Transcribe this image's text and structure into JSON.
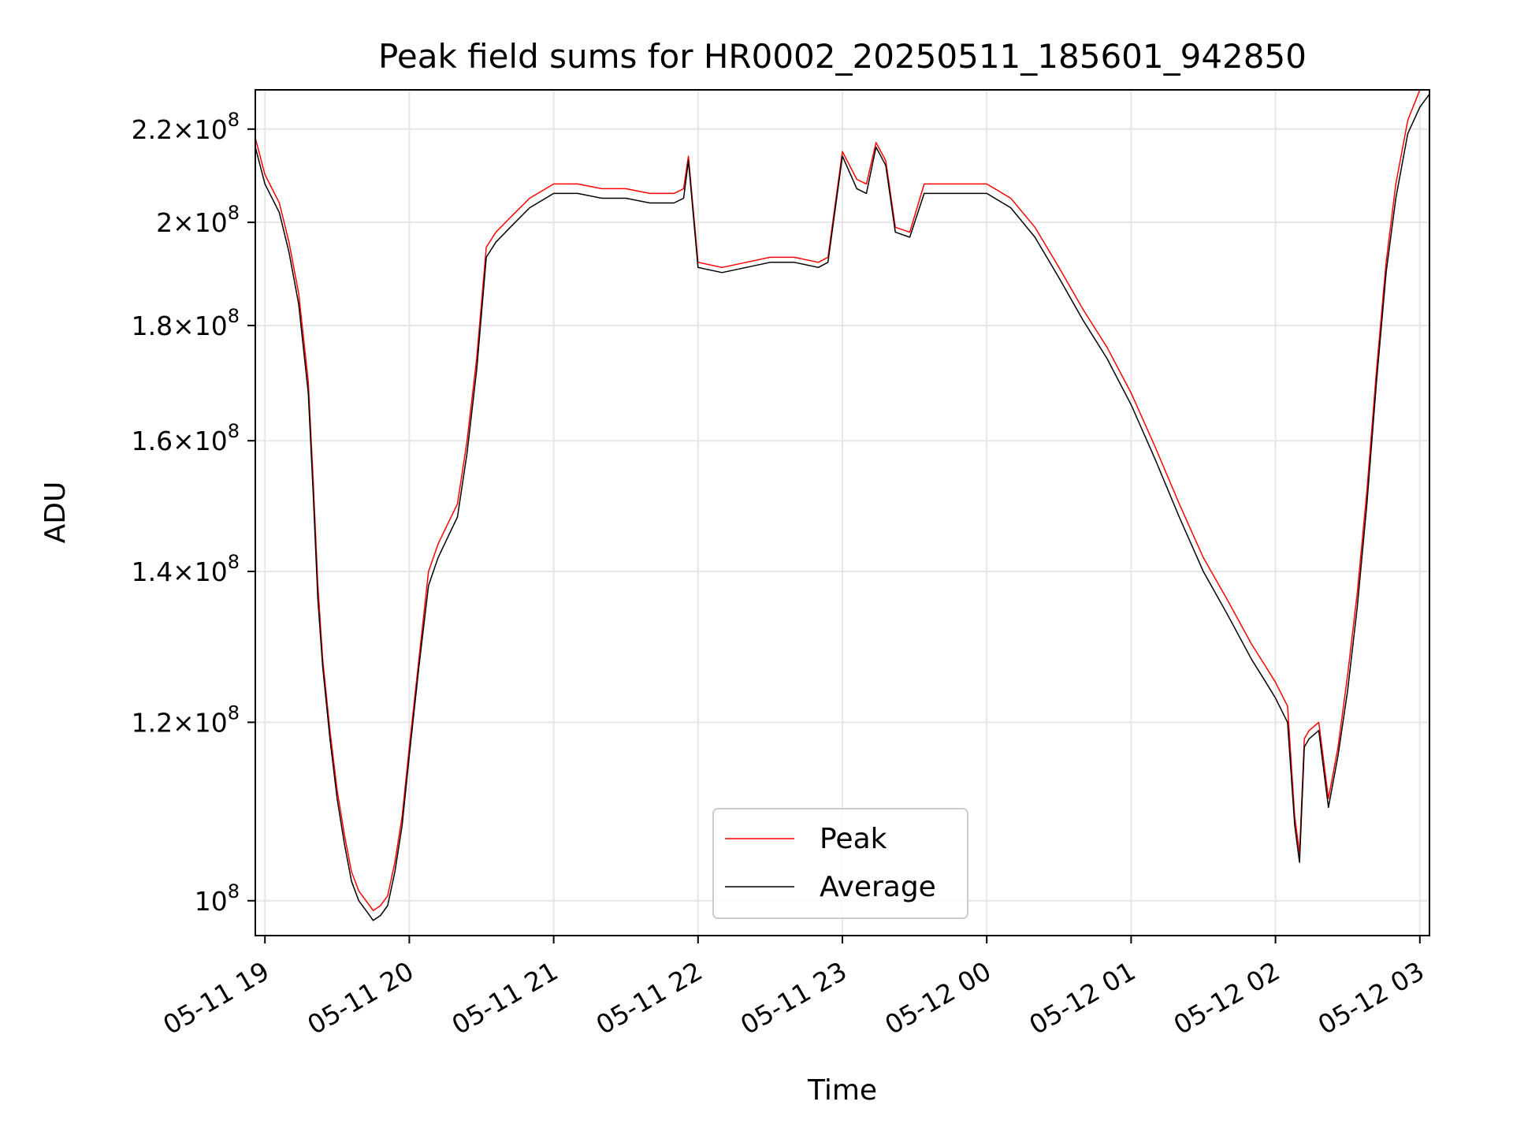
{
  "chart_data": {
    "type": "line",
    "title": "Peak field sums for HR0002_20250511_185601_942850",
    "xlabel": "Time",
    "ylabel": "ADU",
    "yscale": "log",
    "ylim": [
      96500000,
      229000000
    ],
    "xlim": [
      "2025-05-11 18:56",
      "2025-05-12 03:04"
    ],
    "grid": true,
    "legend_position": "lower center",
    "x_ticks": [
      {
        "value": "2025-05-11 19:00",
        "label": "05-11 19"
      },
      {
        "value": "2025-05-11 20:00",
        "label": "05-11 20"
      },
      {
        "value": "2025-05-11 21:00",
        "label": "05-11 21"
      },
      {
        "value": "2025-05-11 22:00",
        "label": "05-11 22"
      },
      {
        "value": "2025-05-11 23:00",
        "label": "05-11 23"
      },
      {
        "value": "2025-05-12 00:00",
        "label": "05-12 00"
      },
      {
        "value": "2025-05-12 01:00",
        "label": "05-12 01"
      },
      {
        "value": "2025-05-12 02:00",
        "label": "05-12 02"
      },
      {
        "value": "2025-05-12 03:00",
        "label": "05-12 03"
      }
    ],
    "y_ticks": [
      {
        "value": 100000000,
        "mantissa": "",
        "exp": "8"
      },
      {
        "value": 120000000,
        "mantissa": "1.2",
        "exp": "8"
      },
      {
        "value": 140000000,
        "mantissa": "1.4",
        "exp": "8"
      },
      {
        "value": 160000000,
        "mantissa": "1.6",
        "exp": "8"
      },
      {
        "value": 180000000,
        "mantissa": "1.8",
        "exp": "8"
      },
      {
        "value": 200000000,
        "mantissa": "2",
        "exp": "8"
      },
      {
        "value": 220000000,
        "mantissa": "2.2",
        "exp": "8"
      }
    ],
    "series": [
      {
        "name": "Average",
        "color": "#000000",
        "x": [
          "2025-05-11 18:56",
          "2025-05-11 19:00",
          "2025-05-11 19:06",
          "2025-05-11 19:10",
          "2025-05-11 19:14",
          "2025-05-11 19:18",
          "2025-05-11 19:20",
          "2025-05-11 19:22",
          "2025-05-11 19:24",
          "2025-05-11 19:27",
          "2025-05-11 19:30",
          "2025-05-11 19:33",
          "2025-05-11 19:36",
          "2025-05-11 19:39",
          "2025-05-11 19:42",
          "2025-05-11 19:45",
          "2025-05-11 19:48",
          "2025-05-11 19:51",
          "2025-05-11 19:54",
          "2025-05-11 19:57",
          "2025-05-11 20:00",
          "2025-05-11 20:04",
          "2025-05-11 20:08",
          "2025-05-11 20:12",
          "2025-05-11 20:16",
          "2025-05-11 20:20",
          "2025-05-11 20:24",
          "2025-05-11 20:28",
          "2025-05-11 20:32",
          "2025-05-11 20:36",
          "2025-05-11 20:42",
          "2025-05-11 20:50",
          "2025-05-11 21:00",
          "2025-05-11 21:10",
          "2025-05-11 21:20",
          "2025-05-11 21:30",
          "2025-05-11 21:40",
          "2025-05-11 21:50",
          "2025-05-11 21:54",
          "2025-05-11 21:56",
          "2025-05-11 22:00",
          "2025-05-11 22:10",
          "2025-05-11 22:20",
          "2025-05-11 22:30",
          "2025-05-11 22:40",
          "2025-05-11 22:50",
          "2025-05-11 22:54",
          "2025-05-11 23:00",
          "2025-05-11 23:06",
          "2025-05-11 23:10",
          "2025-05-11 23:14",
          "2025-05-11 23:18",
          "2025-05-11 23:22",
          "2025-05-11 23:28",
          "2025-05-11 23:34",
          "2025-05-11 23:40",
          "2025-05-11 23:50",
          "2025-05-12 00:00",
          "2025-05-12 00:10",
          "2025-05-12 00:20",
          "2025-05-12 00:30",
          "2025-05-12 00:40",
          "2025-05-12 00:50",
          "2025-05-12 01:00",
          "2025-05-12 01:10",
          "2025-05-12 01:20",
          "2025-05-12 01:30",
          "2025-05-12 01:40",
          "2025-05-12 01:50",
          "2025-05-12 01:56",
          "2025-05-12 02:00",
          "2025-05-12 02:05",
          "2025-05-12 02:08",
          "2025-05-12 02:10",
          "2025-05-12 02:12",
          "2025-05-12 02:14",
          "2025-05-12 02:18",
          "2025-05-12 02:22",
          "2025-05-12 02:26",
          "2025-05-12 02:30",
          "2025-05-12 02:34",
          "2025-05-12 02:38",
          "2025-05-12 02:42",
          "2025-05-12 02:46",
          "2025-05-12 02:50",
          "2025-05-12 02:55",
          "2025-05-12 03:00",
          "2025-05-12 03:04"
        ],
        "values": [
          216000000,
          208000000,
          202000000,
          194000000,
          184000000,
          168000000,
          152000000,
          136000000,
          127000000,
          118000000,
          111000000,
          106000000,
          102000000,
          100000000,
          99000000,
          98000000,
          98500000,
          99500000,
          103000000,
          108000000,
          116000000,
          127000000,
          138000000,
          142000000,
          145000000,
          148000000,
          158000000,
          172000000,
          193000000,
          196000000,
          199000000,
          203000000,
          206000000,
          206000000,
          205000000,
          205000000,
          204000000,
          204000000,
          205000000,
          213000000,
          191000000,
          190000000,
          191000000,
          192000000,
          192000000,
          191000000,
          192000000,
          214000000,
          207000000,
          206000000,
          216000000,
          212000000,
          198000000,
          197000000,
          206000000,
          206000000,
          206000000,
          206000000,
          203000000,
          197000000,
          189000000,
          181000000,
          174000000,
          166000000,
          157000000,
          148000000,
          140000000,
          134000000,
          128000000,
          125000000,
          123000000,
          120000000,
          108000000,
          104000000,
          117000000,
          118000000,
          119000000,
          110000000,
          116000000,
          124000000,
          135000000,
          150000000,
          170000000,
          190000000,
          205000000,
          219000000,
          225000000,
          228000000
        ]
      },
      {
        "name": "Peak",
        "color": "#ff0000",
        "x": [
          "2025-05-11 18:56",
          "2025-05-11 19:00",
          "2025-05-11 19:06",
          "2025-05-11 19:10",
          "2025-05-11 19:14",
          "2025-05-11 19:18",
          "2025-05-11 19:20",
          "2025-05-11 19:22",
          "2025-05-11 19:24",
          "2025-05-11 19:27",
          "2025-05-11 19:30",
          "2025-05-11 19:33",
          "2025-05-11 19:36",
          "2025-05-11 19:39",
          "2025-05-11 19:42",
          "2025-05-11 19:45",
          "2025-05-11 19:48",
          "2025-05-11 19:51",
          "2025-05-11 19:54",
          "2025-05-11 19:57",
          "2025-05-11 20:00",
          "2025-05-11 20:04",
          "2025-05-11 20:08",
          "2025-05-11 20:12",
          "2025-05-11 20:16",
          "2025-05-11 20:20",
          "2025-05-11 20:24",
          "2025-05-11 20:28",
          "2025-05-11 20:32",
          "2025-05-11 20:36",
          "2025-05-11 20:42",
          "2025-05-11 20:50",
          "2025-05-11 21:00",
          "2025-05-11 21:10",
          "2025-05-11 21:20",
          "2025-05-11 21:30",
          "2025-05-11 21:40",
          "2025-05-11 21:50",
          "2025-05-11 21:54",
          "2025-05-11 21:56",
          "2025-05-11 22:00",
          "2025-05-11 22:10",
          "2025-05-11 22:20",
          "2025-05-11 22:30",
          "2025-05-11 22:40",
          "2025-05-11 22:50",
          "2025-05-11 22:54",
          "2025-05-11 23:00",
          "2025-05-11 23:06",
          "2025-05-11 23:10",
          "2025-05-11 23:14",
          "2025-05-11 23:18",
          "2025-05-11 23:22",
          "2025-05-11 23:28",
          "2025-05-11 23:34",
          "2025-05-11 23:40",
          "2025-05-11 23:50",
          "2025-05-12 00:00",
          "2025-05-12 00:10",
          "2025-05-12 00:20",
          "2025-05-12 00:30",
          "2025-05-12 00:40",
          "2025-05-12 00:50",
          "2025-05-12 01:00",
          "2025-05-12 01:10",
          "2025-05-12 01:20",
          "2025-05-12 01:30",
          "2025-05-12 01:40",
          "2025-05-12 01:50",
          "2025-05-12 01:56",
          "2025-05-12 02:00",
          "2025-05-12 02:05",
          "2025-05-12 02:08",
          "2025-05-12 02:10",
          "2025-05-12 02:12",
          "2025-05-12 02:14",
          "2025-05-12 02:18",
          "2025-05-12 02:22",
          "2025-05-12 02:26",
          "2025-05-12 02:30",
          "2025-05-12 02:34",
          "2025-05-12 02:38",
          "2025-05-12 02:42",
          "2025-05-12 02:46",
          "2025-05-12 02:50",
          "2025-05-12 02:55",
          "2025-05-12 03:00",
          "2025-05-12 03:04"
        ],
        "values": [
          218000000,
          210000000,
          204000000,
          196000000,
          186000000,
          170000000,
          154000000,
          138000000,
          128000000,
          119000000,
          112000000,
          107000000,
          103000000,
          101000000,
          100000000,
          99000000,
          99500000,
          100500000,
          104000000,
          109000000,
          117000000,
          128000000,
          140000000,
          144000000,
          147000000,
          150000000,
          160000000,
          174000000,
          195000000,
          198000000,
          201000000,
          205000000,
          208000000,
          208000000,
          207000000,
          207000000,
          206000000,
          206000000,
          207000000,
          214000000,
          192000000,
          191000000,
          192000000,
          193000000,
          193000000,
          192000000,
          193000000,
          215000000,
          209000000,
          208000000,
          217000000,
          213000000,
          199000000,
          198000000,
          208000000,
          208000000,
          208000000,
          208000000,
          205000000,
          199000000,
          191000000,
          183000000,
          176000000,
          168000000,
          159000000,
          150000000,
          142000000,
          136000000,
          130000000,
          127000000,
          125000000,
          122000000,
          109000000,
          105000000,
          118000000,
          119000000,
          120000000,
          111000000,
          117000000,
          126000000,
          137000000,
          152000000,
          172000000,
          192000000,
          208000000,
          222000000,
          229000000,
          229000000
        ]
      }
    ]
  }
}
